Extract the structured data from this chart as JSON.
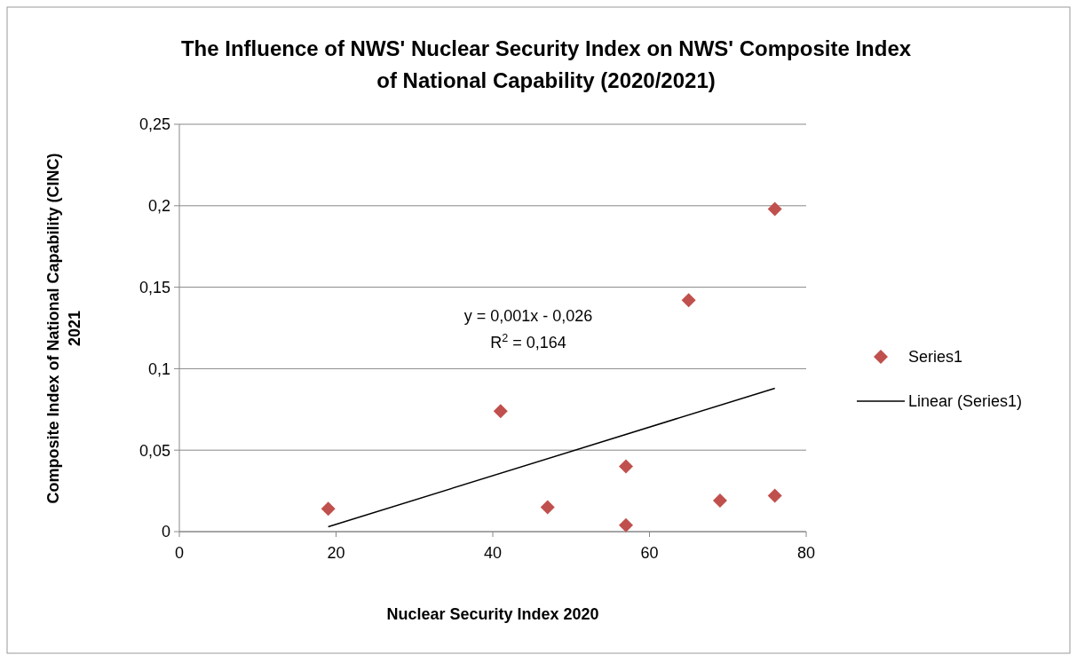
{
  "chart_data": {
    "type": "scatter",
    "title": "The Influence of NWS' Nuclear Security Index on NWS' Composite Index of National Capability (2020/2021)",
    "xlabel": "Nuclear Security Index 2020",
    "ylabel": "Composite Index of National Capability (CINC) 2021",
    "xlim": [
      0,
      80
    ],
    "xticks": [
      0,
      20,
      40,
      60,
      80
    ],
    "ylim": [
      0,
      0.25
    ],
    "yticks": [
      0,
      {
        "value": 0.05,
        "label": "0,05"
      },
      {
        "value": 0.1,
        "label": "0,1"
      },
      {
        "value": 0.15,
        "label": "0,15"
      },
      {
        "value": 0.2,
        "label": "0,2"
      },
      {
        "value": 0.25,
        "label": "0,25"
      }
    ],
    "grid": "y",
    "legend": "right",
    "series": [
      {
        "name": "Series1",
        "marker": "diamond",
        "color": "#c0504d",
        "x": [
          19,
          41,
          47,
          57,
          57,
          65,
          69,
          76,
          76
        ],
        "values": [
          0.014,
          0.074,
          0.015,
          0.04,
          0.004,
          0.142,
          0.019,
          0.198,
          0.022
        ]
      },
      {
        "name": "Linear (Series1)",
        "type": "line",
        "line_style": "solid",
        "color": "#000000",
        "x": [
          19,
          76
        ],
        "values": [
          0.003,
          0.088
        ]
      }
    ],
    "annotations": [
      {
        "text": "y = 0,001x - 0,026"
      },
      {
        "text": "R$^{2}$ = 0,164"
      }
    ]
  }
}
